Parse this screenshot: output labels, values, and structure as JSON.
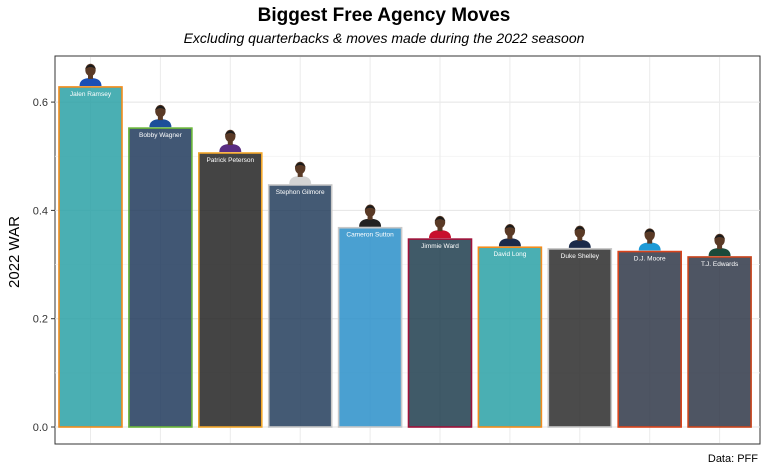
{
  "chart_data": {
    "type": "bar",
    "title": "Biggest Free Agency Moves",
    "subtitle": "Excluding quarterbacks & moves made during the 2022 seasoon",
    "xlabel": "",
    "ylabel": "2022 WAR",
    "caption": "Data: PFF",
    "ylim": [
      0,
      0.65
    ],
    "yticks": [
      "0.0",
      "0.2",
      "0.4",
      "0.6"
    ],
    "grid": true,
    "categories": [
      "Jalen Ramsey",
      "Bobby Wagner",
      "Patrick Peterson",
      "Stephon Gilmore",
      "Cameron Sutton",
      "Jimmie Ward",
      "David Long",
      "Duke Shelley",
      "D.J. Moore",
      "T.J. Edwards"
    ],
    "values": [
      0.628,
      0.552,
      0.506,
      0.447,
      0.368,
      0.347,
      0.332,
      0.329,
      0.324,
      0.314
    ],
    "fill_colors": [
      "#2aa1a6",
      "#203a5c",
      "#232323",
      "#233d5c",
      "#2a8fc9",
      "#1e3d4e",
      "#2aa1a6",
      "#2b2b2b",
      "#2f3748",
      "#2f3748"
    ],
    "border_colors": [
      "#f28c1c",
      "#6ab63a",
      "#f2a62a",
      "#c8c8c8",
      "#c8c8c8",
      "#a0123a",
      "#f28c1c",
      "#c8c8c8",
      "#d9441c",
      "#c9441c"
    ],
    "jersey_colors": [
      "#1a4fb4",
      "#1c4f9a",
      "#5a2d82",
      "#d4d4d4",
      "#222222",
      "#c8102e",
      "#1b2a4a",
      "#1b2a4a",
      "#1e9ad6",
      "#1b4a3a"
    ]
  }
}
